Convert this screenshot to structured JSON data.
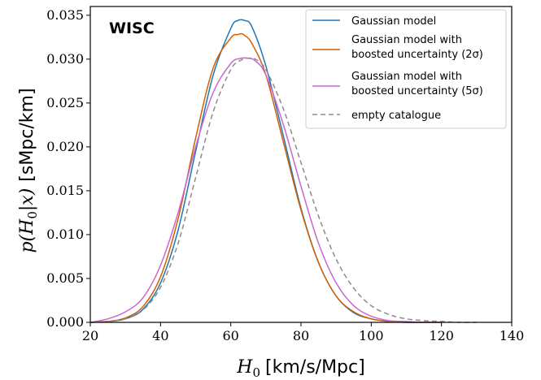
{
  "chart_data": {
    "type": "line",
    "annotation": "WISC",
    "xlabel": {
      "var": "H",
      "sub": "0",
      "unit": "[km/s/Mpc]"
    },
    "ylabel": {
      "text": "p(H",
      "sub": "0",
      "cond": "|x)",
      "unit": "[sMpc/km]"
    },
    "xlim": [
      20,
      140
    ],
    "ylim": [
      0,
      0.036
    ],
    "xticks": [
      "20",
      "40",
      "60",
      "80",
      "100",
      "120",
      "140"
    ],
    "yticks": [
      "0.000",
      "0.005",
      "0.010",
      "0.015",
      "0.020",
      "0.025",
      "0.030",
      "0.035"
    ],
    "legend_position": "upper right",
    "series": [
      {
        "name": "Gaussian model",
        "color": "#1f77b4",
        "style": "solid",
        "x": [
          20,
          25,
          30,
          35,
          40,
          45,
          50,
          55,
          60,
          62,
          64,
          66,
          70,
          75,
          80,
          85,
          90,
          95,
          100,
          105,
          110,
          115,
          120
        ],
        "y": [
          0.0,
          0.0001,
          0.0004,
          0.0015,
          0.0045,
          0.0105,
          0.0195,
          0.0282,
          0.0335,
          0.0344,
          0.0344,
          0.0337,
          0.0292,
          0.0212,
          0.013,
          0.0068,
          0.003,
          0.0011,
          0.0004,
          0.0001,
          0.0,
          0.0,
          0.0
        ]
      },
      {
        "name": "Gaussian model with boosted uncertainty (2σ)",
        "legend_lines": [
          "Gaussian model with",
          "boosted uncertainty (2σ)"
        ],
        "color": "#d35f00",
        "style": "solid",
        "x": [
          20,
          25,
          30,
          35,
          40,
          45,
          50,
          55,
          60,
          62,
          63,
          64,
          66,
          70,
          75,
          80,
          85,
          90,
          95,
          100,
          105,
          110,
          115,
          120
        ],
        "y": [
          0.0,
          0.0001,
          0.0005,
          0.0018,
          0.0052,
          0.0118,
          0.021,
          0.029,
          0.0324,
          0.0328,
          0.0329,
          0.0327,
          0.0318,
          0.0282,
          0.0205,
          0.0128,
          0.0068,
          0.003,
          0.0012,
          0.0004,
          0.0001,
          0.0,
          0.0,
          0.0
        ]
      },
      {
        "name": "Gaussian model with boosted uncertainty (5σ)",
        "legend_lines": [
          "Gaussian model with",
          "boosted uncertainty (5σ)"
        ],
        "color": "#cc66cc",
        "style": "solid",
        "x": [
          20,
          25,
          30,
          35,
          40,
          45,
          50,
          55,
          60,
          63,
          65,
          67,
          70,
          75,
          80,
          85,
          90,
          95,
          100,
          105,
          110,
          115,
          120
        ],
        "y": [
          0.0,
          0.0004,
          0.0012,
          0.0028,
          0.0065,
          0.0125,
          0.02,
          0.0262,
          0.0295,
          0.0301,
          0.0301,
          0.0298,
          0.0282,
          0.0225,
          0.0155,
          0.009,
          0.0045,
          0.0019,
          0.0007,
          0.0002,
          0.0001,
          0.0,
          0.0
        ]
      },
      {
        "name": "empty catalogue",
        "color": "#8c8c8c",
        "style": "dashed",
        "x": [
          20,
          25,
          30,
          35,
          40,
          45,
          50,
          55,
          60,
          63,
          65,
          67,
          70,
          75,
          80,
          85,
          90,
          95,
          100,
          105,
          110,
          115,
          120,
          125,
          130
        ],
        "y": [
          0.0,
          0.0001,
          0.0004,
          0.0014,
          0.004,
          0.009,
          0.0165,
          0.024,
          0.0288,
          0.0299,
          0.0301,
          0.03,
          0.0288,
          0.0243,
          0.0182,
          0.0121,
          0.0072,
          0.0039,
          0.0019,
          0.0009,
          0.0004,
          0.0002,
          0.0001,
          0.0,
          0.0
        ]
      }
    ]
  }
}
